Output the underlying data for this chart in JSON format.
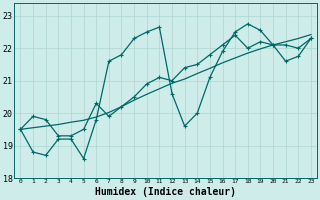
{
  "xlabel": "Humidex (Indice chaleur)",
  "background_color": "#ceecea",
  "grid_color": "#aed4d0",
  "line_color": "#006868",
  "xlim": [
    -0.5,
    23.5
  ],
  "ylim": [
    18.0,
    23.4
  ],
  "yticks": [
    18,
    19,
    20,
    21,
    22,
    23
  ],
  "xticks": [
    0,
    1,
    2,
    3,
    4,
    5,
    6,
    7,
    8,
    9,
    10,
    11,
    12,
    13,
    14,
    15,
    16,
    17,
    18,
    19,
    20,
    21,
    22,
    23
  ],
  "line1_y": [
    19.5,
    18.8,
    18.7,
    19.2,
    19.2,
    18.6,
    19.8,
    21.6,
    21.8,
    22.3,
    22.5,
    22.65,
    20.6,
    19.6,
    20.0,
    21.1,
    21.9,
    22.5,
    22.75,
    22.55,
    22.1,
    21.6,
    21.75,
    22.3
  ],
  "line2_y": [
    19.5,
    19.9,
    19.8,
    19.3,
    19.3,
    19.5,
    20.3,
    19.9,
    20.2,
    20.5,
    20.9,
    21.1,
    21.0,
    21.4,
    21.5,
    21.8,
    22.1,
    22.4,
    22.0,
    22.2,
    22.1,
    22.1,
    22.0,
    22.3
  ],
  "line3_y": [
    19.5,
    19.55,
    19.6,
    19.65,
    19.72,
    19.78,
    19.88,
    20.02,
    20.2,
    20.4,
    20.58,
    20.75,
    20.92,
    21.05,
    21.22,
    21.38,
    21.55,
    21.7,
    21.85,
    21.98,
    22.1,
    22.2,
    22.3,
    22.42
  ],
  "xtick_fontsize": 4.5,
  "ytick_fontsize": 6.0,
  "xlabel_fontsize": 7.0,
  "line_width": 0.9,
  "marker_size": 3.5
}
